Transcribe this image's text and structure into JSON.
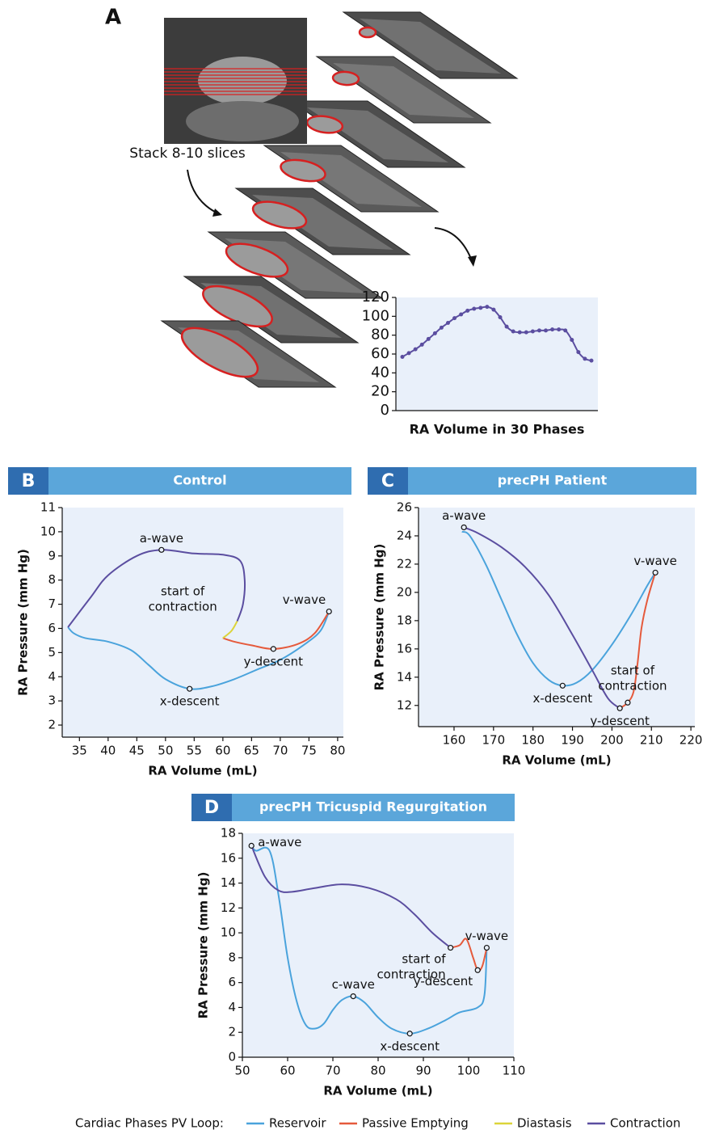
{
  "chart_data": [
    {
      "type": "line",
      "panel": "A",
      "annotation": "Stack 8-10 slices",
      "xlabel": "RA Volume in 30 Phases",
      "color": "#5b4ea0",
      "values": [
        57,
        61,
        65,
        70,
        76,
        82,
        88,
        93,
        98,
        102,
        106,
        108,
        109,
        110,
        107,
        99,
        89,
        84,
        83,
        83,
        84,
        85,
        85,
        86,
        86,
        85,
        75,
        62,
        55,
        53
      ],
      "ylim": [
        0,
        120
      ],
      "yticks": [
        0,
        20,
        40,
        60,
        80,
        100,
        120
      ]
    },
    {
      "type": "loop",
      "panel": "B",
      "title": "Control",
      "xlabel": "RA Volume (mL)",
      "ylabel": "RA Pressure (mm Hg)",
      "xlim": [
        32,
        81
      ],
      "xticks": [
        35,
        40,
        45,
        50,
        55,
        60,
        65,
        70,
        75,
        80
      ],
      "ylim": [
        1.5,
        11
      ],
      "yticks": [
        2,
        3,
        4,
        5,
        6,
        7,
        8,
        9,
        10,
        11
      ],
      "series": [
        {
          "color": "#4aa3dc",
          "x": [
            33,
            34,
            36,
            40,
            44,
            47,
            50,
            54.2,
            58,
            62,
            66,
            70,
            74,
            77,
            78.5
          ],
          "values": [
            6.05,
            5.8,
            5.6,
            5.45,
            5.1,
            4.5,
            3.9,
            3.5,
            3.6,
            3.9,
            4.3,
            4.7,
            5.3,
            5.9,
            6.7
          ]
        },
        {
          "color": "#e55a3c",
          "x": [
            78.5,
            76,
            73,
            68.8,
            65,
            62,
            60
          ],
          "values": [
            6.7,
            5.8,
            5.35,
            5.15,
            5.3,
            5.45,
            5.6
          ]
        },
        {
          "color": "#dcd43a",
          "x": [
            60,
            61.5,
            62.5
          ],
          "values": [
            5.6,
            5.9,
            6.3
          ]
        },
        {
          "color": "#5b4ea0",
          "x": [
            62.5,
            63.5,
            63.8,
            63,
            60,
            55,
            49.3,
            45,
            40,
            37,
            33
          ],
          "values": [
            6.3,
            7,
            8,
            8.8,
            9.05,
            9.1,
            9.25,
            9.0,
            8.2,
            7.3,
            6.05
          ]
        }
      ],
      "annotations": [
        {
          "label": "a-wave",
          "x": 49.3,
          "y": 9.25,
          "position": "above"
        },
        {
          "label": "v-wave",
          "x": 78.5,
          "y": 6.7,
          "position": "above-left"
        },
        {
          "label": "y-descent",
          "x": 68.8,
          "y": 5.15,
          "position": "below"
        },
        {
          "label": "x-descent",
          "x": 54.2,
          "y": 3.5,
          "position": "below"
        },
        {
          "label": [
            "start of",
            "contraction"
          ],
          "x": 53,
          "y": 7.2,
          "marker": false,
          "position": "center"
        }
      ]
    },
    {
      "type": "loop",
      "panel": "C",
      "title": "precPH Patient",
      "xlabel": "RA Volume (mL)",
      "ylabel": "RA Pressure (mm Hg)",
      "xlim": [
        151,
        221
      ],
      "xticks": [
        160,
        170,
        180,
        190,
        200,
        210,
        220
      ],
      "ylim": [
        10.5,
        26
      ],
      "yticks": [
        12,
        14,
        16,
        18,
        20,
        22,
        24,
        26
      ],
      "series": [
        {
          "color": "#4aa3dc",
          "x": [
            162,
            164,
            168,
            172,
            176,
            180,
            184,
            187.5,
            191,
            195,
            200,
            205,
            209,
            211
          ],
          "values": [
            24.3,
            24,
            22,
            19.5,
            17,
            15,
            13.8,
            13.4,
            13.6,
            14.5,
            16.3,
            18.5,
            20.5,
            21.4
          ]
        },
        {
          "color": "#e55a3c",
          "x": [
            211,
            209,
            207.5,
            206.5,
            205.5,
            204,
            202
          ],
          "values": [
            21.4,
            19.5,
            17.5,
            15,
            13,
            12.2,
            11.8
          ]
        },
        {
          "color": "#5b4ea0",
          "x": [
            202,
            199,
            195,
            190,
            184,
            178,
            172,
            166,
            162.5
          ],
          "values": [
            11.8,
            12.5,
            14.5,
            17,
            19.8,
            21.8,
            23.2,
            24.2,
            24.6
          ]
        }
      ],
      "annotations": [
        {
          "label": "a-wave",
          "x": 162.5,
          "y": 24.6,
          "position": "above"
        },
        {
          "label": "v-wave",
          "x": 211,
          "y": 21.4,
          "position": "above"
        },
        {
          "label": "x-descent",
          "x": 187.5,
          "y": 13.4,
          "position": "below"
        },
        {
          "label": "y-descent",
          "x": 202,
          "y": 11.8,
          "position": "below"
        },
        {
          "label": [
            "start of",
            "contraction"
          ],
          "x": 204,
          "y": 12.2,
          "position": "above-right"
        }
      ]
    },
    {
      "type": "loop",
      "panel": "D",
      "title": "precPH Tricuspid Regurgitation",
      "xlabel": "RA Volume (mL)",
      "ylabel": "RA Pressure (mm Hg)",
      "xlim": [
        50,
        110
      ],
      "xticks": [
        50,
        60,
        70,
        80,
        90,
        100,
        110
      ],
      "ylim": [
        0,
        18
      ],
      "yticks": [
        0,
        2,
        4,
        6,
        8,
        10,
        12,
        14,
        16,
        18
      ],
      "series": [
        {
          "color": "#4aa3dc",
          "x": [
            52,
            53,
            56,
            58,
            60,
            62,
            64,
            66,
            68,
            70,
            72,
            74.5,
            77,
            80,
            83,
            87,
            91,
            95,
            98,
            102,
            103.5,
            104
          ],
          "values": [
            17,
            16.6,
            16.6,
            13,
            8,
            4.5,
            2.6,
            2.3,
            2.7,
            3.8,
            4.6,
            4.9,
            4.4,
            3.2,
            2.3,
            1.9,
            2.3,
            3,
            3.6,
            4,
            5,
            8.8
          ]
        },
        {
          "color": "#e55a3c",
          "x": [
            104,
            103,
            102,
            101,
            99.5,
            98,
            96
          ],
          "values": [
            8.8,
            7.3,
            7,
            8,
            9.5,
            9,
            8.8
          ]
        },
        {
          "color": "#5b4ea0",
          "x": [
            96,
            92,
            88,
            84,
            78,
            72,
            66,
            61,
            58,
            55,
            52
          ],
          "values": [
            8.8,
            10,
            11.5,
            12.7,
            13.6,
            13.9,
            13.6,
            13.3,
            13.4,
            14.5,
            17
          ]
        }
      ],
      "annotations": [
        {
          "label": "a-wave",
          "x": 52,
          "y": 17,
          "position": "right"
        },
        {
          "label": "v-wave",
          "x": 104,
          "y": 8.8,
          "position": "above"
        },
        {
          "label": "c-wave",
          "x": 74.5,
          "y": 4.9,
          "position": "above"
        },
        {
          "label": "x-descent",
          "x": 87,
          "y": 1.9,
          "position": "below"
        },
        {
          "label": "y-descent",
          "x": 102,
          "y": 7,
          "position": "below-left"
        },
        {
          "label": [
            "start of",
            "contraction"
          ],
          "x": 96,
          "y": 8.8,
          "position": "below-left"
        }
      ]
    }
  ],
  "legend": {
    "title": "Cardiac Phases PV Loop:",
    "items": [
      {
        "name": "Reservoir",
        "color": "#4aa3dc"
      },
      {
        "name": "Passive Emptying",
        "color": "#e55a3c"
      },
      {
        "name": "Diastasis",
        "color": "#dcd43a"
      },
      {
        "name": "Contraction",
        "color": "#5b4ea0"
      }
    ]
  }
}
